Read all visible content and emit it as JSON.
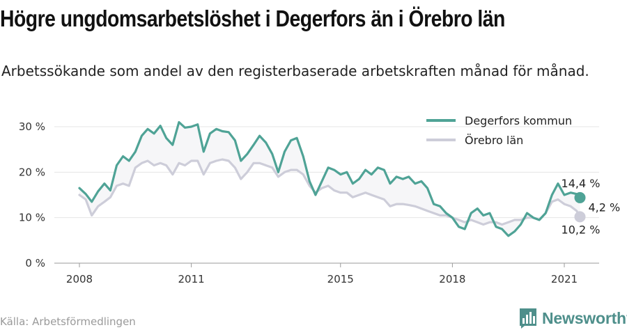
{
  "title": "Högre ungdomsarbetslöshet i Degerfors än i Örebro län",
  "subtitle": "Arbetssökande som andel av den registerbaserade arbetskraften månad för månad.",
  "source": "Källa: Arbetsförmedlingen",
  "brand": {
    "name": "Newsworthy",
    "icon": "bar-chart-logo-icon"
  },
  "chart_data": {
    "type": "line",
    "title": "",
    "xlabel": "",
    "ylabel": "",
    "ylim": [
      0,
      30
    ],
    "y_ticks": [
      0,
      10,
      20,
      30
    ],
    "y_tick_labels": [
      "0 %",
      "10 %",
      "20 %",
      "30 %"
    ],
    "x_ticks": [
      2008,
      2011,
      2015,
      2018,
      2021
    ],
    "x_tick_labels": [
      "2008",
      "2011",
      "2015",
      "2018",
      "2021"
    ],
    "xlim": [
      2007.4,
      2022.0
    ],
    "grid": true,
    "legend_position": "top-right",
    "gap_fill": true,
    "series": [
      {
        "name": "Degerfors kommun",
        "color": "#4fa396",
        "points": [
          [
            2008.0,
            16.5
          ],
          [
            2008.17,
            15.2
          ],
          [
            2008.33,
            13.5
          ],
          [
            2008.5,
            15.8
          ],
          [
            2008.67,
            17.5
          ],
          [
            2008.83,
            16.0
          ],
          [
            2009.0,
            21.5
          ],
          [
            2009.17,
            23.5
          ],
          [
            2009.33,
            22.5
          ],
          [
            2009.5,
            24.5
          ],
          [
            2009.67,
            28.0
          ],
          [
            2009.83,
            29.5
          ],
          [
            2010.0,
            28.5
          ],
          [
            2010.17,
            30.2
          ],
          [
            2010.33,
            27.5
          ],
          [
            2010.5,
            26.0
          ],
          [
            2010.67,
            31.0
          ],
          [
            2010.83,
            29.8
          ],
          [
            2011.0,
            30.0
          ],
          [
            2011.17,
            30.5
          ],
          [
            2011.33,
            24.5
          ],
          [
            2011.5,
            28.5
          ],
          [
            2011.67,
            29.5
          ],
          [
            2011.83,
            29.0
          ],
          [
            2012.0,
            28.8
          ],
          [
            2012.17,
            27.0
          ],
          [
            2012.33,
            22.5
          ],
          [
            2012.5,
            24.0
          ],
          [
            2012.67,
            26.0
          ],
          [
            2012.83,
            28.0
          ],
          [
            2013.0,
            26.5
          ],
          [
            2013.17,
            24.0
          ],
          [
            2013.33,
            20.0
          ],
          [
            2013.5,
            24.5
          ],
          [
            2013.67,
            27.0
          ],
          [
            2013.83,
            27.5
          ],
          [
            2014.0,
            23.5
          ],
          [
            2014.17,
            18.0
          ],
          [
            2014.33,
            15.0
          ],
          [
            2014.5,
            18.0
          ],
          [
            2014.67,
            21.0
          ],
          [
            2014.83,
            20.5
          ],
          [
            2015.0,
            19.5
          ],
          [
            2015.17,
            20.0
          ],
          [
            2015.33,
            17.5
          ],
          [
            2015.5,
            18.5
          ],
          [
            2015.67,
            20.5
          ],
          [
            2015.83,
            19.5
          ],
          [
            2016.0,
            21.0
          ],
          [
            2016.17,
            20.5
          ],
          [
            2016.33,
            17.5
          ],
          [
            2016.5,
            19.0
          ],
          [
            2016.67,
            18.5
          ],
          [
            2016.83,
            19.0
          ],
          [
            2017.0,
            17.5
          ],
          [
            2017.17,
            18.0
          ],
          [
            2017.33,
            16.5
          ],
          [
            2017.5,
            13.0
          ],
          [
            2017.67,
            12.5
          ],
          [
            2017.83,
            11.0
          ],
          [
            2018.0,
            10.0
          ],
          [
            2018.17,
            8.0
          ],
          [
            2018.33,
            7.5
          ],
          [
            2018.5,
            11.0
          ],
          [
            2018.67,
            12.0
          ],
          [
            2018.83,
            10.5
          ],
          [
            2019.0,
            11.0
          ],
          [
            2019.17,
            8.0
          ],
          [
            2019.33,
            7.5
          ],
          [
            2019.5,
            6.0
          ],
          [
            2019.67,
            7.0
          ],
          [
            2019.83,
            8.5
          ],
          [
            2020.0,
            11.0
          ],
          [
            2020.17,
            10.0
          ],
          [
            2020.33,
            9.5
          ],
          [
            2020.5,
            11.0
          ],
          [
            2020.67,
            15.0
          ],
          [
            2020.83,
            17.5
          ],
          [
            2021.0,
            15.0
          ],
          [
            2021.17,
            15.5
          ],
          [
            2021.33,
            15.2
          ],
          [
            2021.42,
            14.4
          ]
        ],
        "end_label": "14,4 %"
      },
      {
        "name": "Örebro län",
        "color": "#cdcdd9",
        "points": [
          [
            2008.0,
            15.0
          ],
          [
            2008.17,
            14.0
          ],
          [
            2008.33,
            10.5
          ],
          [
            2008.5,
            12.5
          ],
          [
            2008.67,
            13.5
          ],
          [
            2008.83,
            14.5
          ],
          [
            2009.0,
            17.0
          ],
          [
            2009.17,
            17.5
          ],
          [
            2009.33,
            17.0
          ],
          [
            2009.5,
            21.0
          ],
          [
            2009.67,
            22.0
          ],
          [
            2009.83,
            22.5
          ],
          [
            2010.0,
            21.5
          ],
          [
            2010.17,
            22.0
          ],
          [
            2010.33,
            21.5
          ],
          [
            2010.5,
            19.5
          ],
          [
            2010.67,
            22.0
          ],
          [
            2010.83,
            21.5
          ],
          [
            2011.0,
            22.5
          ],
          [
            2011.17,
            22.5
          ],
          [
            2011.33,
            19.5
          ],
          [
            2011.5,
            22.0
          ],
          [
            2011.67,
            22.5
          ],
          [
            2011.83,
            22.8
          ],
          [
            2012.0,
            22.5
          ],
          [
            2012.17,
            21.0
          ],
          [
            2012.33,
            18.5
          ],
          [
            2012.5,
            20.0
          ],
          [
            2012.67,
            22.0
          ],
          [
            2012.83,
            22.0
          ],
          [
            2013.0,
            21.5
          ],
          [
            2013.17,
            21.0
          ],
          [
            2013.33,
            19.0
          ],
          [
            2013.5,
            20.0
          ],
          [
            2013.67,
            20.5
          ],
          [
            2013.83,
            20.5
          ],
          [
            2014.0,
            19.5
          ],
          [
            2014.17,
            17.0
          ],
          [
            2014.33,
            15.5
          ],
          [
            2014.5,
            16.5
          ],
          [
            2014.67,
            17.0
          ],
          [
            2014.83,
            16.0
          ],
          [
            2015.0,
            15.5
          ],
          [
            2015.17,
            15.5
          ],
          [
            2015.33,
            14.5
          ],
          [
            2015.5,
            15.0
          ],
          [
            2015.67,
            15.5
          ],
          [
            2015.83,
            15.0
          ],
          [
            2016.0,
            14.5
          ],
          [
            2016.17,
            14.0
          ],
          [
            2016.33,
            12.5
          ],
          [
            2016.5,
            13.0
          ],
          [
            2016.67,
            13.0
          ],
          [
            2016.83,
            12.8
          ],
          [
            2017.0,
            12.5
          ],
          [
            2017.17,
            12.0
          ],
          [
            2017.33,
            11.5
          ],
          [
            2017.5,
            11.0
          ],
          [
            2017.67,
            10.5
          ],
          [
            2017.83,
            10.5
          ],
          [
            2018.0,
            10.0
          ],
          [
            2018.17,
            9.5
          ],
          [
            2018.33,
            9.0
          ],
          [
            2018.5,
            9.5
          ],
          [
            2018.67,
            9.0
          ],
          [
            2018.83,
            8.5
          ],
          [
            2019.0,
            9.0
          ],
          [
            2019.17,
            9.0
          ],
          [
            2019.33,
            8.5
          ],
          [
            2019.5,
            9.0
          ],
          [
            2019.67,
            9.5
          ],
          [
            2019.83,
            9.5
          ],
          [
            2020.0,
            10.0
          ],
          [
            2020.17,
            10.0
          ],
          [
            2020.33,
            9.5
          ],
          [
            2020.5,
            11.0
          ],
          [
            2020.67,
            13.5
          ],
          [
            2020.83,
            14.0
          ],
          [
            2021.0,
            13.0
          ],
          [
            2021.17,
            12.5
          ],
          [
            2021.33,
            11.5
          ],
          [
            2021.42,
            10.2
          ]
        ],
        "end_label": "10,2 %"
      }
    ],
    "difference_label": "4,2 %"
  }
}
